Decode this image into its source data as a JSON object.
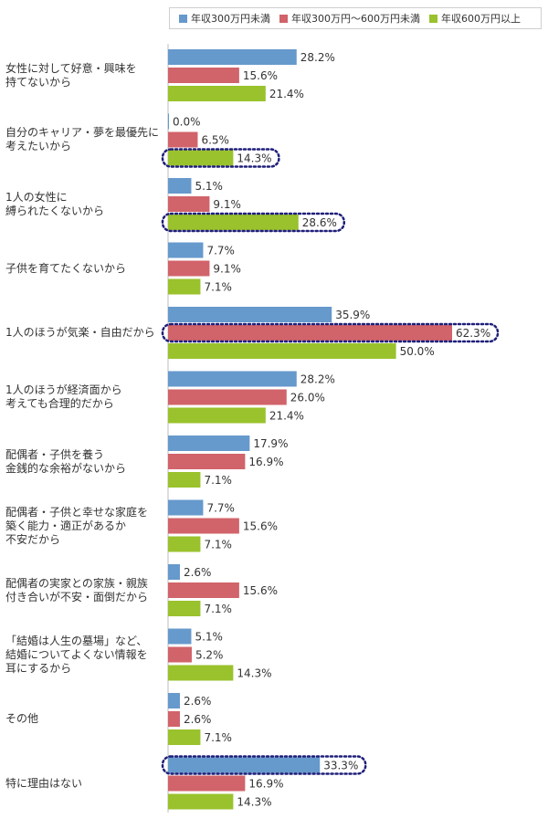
{
  "colors": {
    "s0": "#6699cc",
    "s1": "#d1636a",
    "s2": "#99c22c",
    "highlight": "#1f1f7a"
  },
  "chart_data": {
    "type": "bar",
    "orientation": "horizontal",
    "title": "",
    "xlabel": "",
    "ylabel": "",
    "unit": "%",
    "xlim": [
      0,
      100
    ],
    "legend_position": "top-right",
    "grid": false,
    "series": [
      {
        "name": "年収300万円未満",
        "values": [
          28.2,
          0.0,
          5.1,
          7.7,
          35.9,
          28.2,
          17.9,
          7.7,
          2.6,
          5.1,
          2.6,
          33.3
        ]
      },
      {
        "name": "年収300万円～600万円未満",
        "values": [
          15.6,
          6.5,
          9.1,
          9.1,
          62.3,
          26.0,
          16.9,
          15.6,
          15.6,
          5.2,
          2.6,
          16.9
        ]
      },
      {
        "name": "年収600万円以上",
        "values": [
          21.4,
          14.3,
          28.6,
          7.1,
          50.0,
          21.4,
          7.1,
          7.1,
          7.1,
          14.3,
          7.1,
          14.3
        ]
      }
    ],
    "value_labels": [
      [
        "28.2%",
        "0.0%",
        "5.1%",
        "7.7%",
        "35.9%",
        "28.2%",
        "17.9%",
        "7.7%",
        "2.6%",
        "5.1%",
        "2.6%",
        "33.3%"
      ],
      [
        "15.6%",
        "6.5%",
        "9.1%",
        "9.1%",
        "62.3%",
        "26.0%",
        "16.9%",
        "15.6%",
        "15.6%",
        "5.2%",
        "2.6%",
        "16.9%"
      ],
      [
        "21.4%",
        "14.3%",
        "28.6%",
        "7.1%",
        "50.0%",
        "21.4%",
        "7.1%",
        "7.1%",
        "7.1%",
        "14.3%",
        "7.1%",
        "14.3%"
      ]
    ],
    "categories": [
      "女性に対して好意・興味を\n持てないから",
      "自分のキャリア・夢を最優先に\n考えたいから",
      "1人の女性に\n縛られたくないから",
      "子供を育てたくないから",
      "1人のほうが気楽・自由だから",
      "1人のほうが経済面から\n考えても合理的だから",
      "配偶者・子供を養う\n金銭的な余裕がないから",
      "配偶者・子供と幸せな家庭を\n築く能力・適正があるか\n不安だから",
      "配偶者の実家との家族・親族\n付き合いが不安・面倒だから",
      "「結婚は人生の墓場」など、\n結婚についてよくない情報を\n耳にするから",
      "その他",
      "特に理由はない"
    ],
    "highlights": [
      {
        "category": 1,
        "series": 2
      },
      {
        "category": 2,
        "series": 2
      },
      {
        "category": 4,
        "series": 1
      },
      {
        "category": 11,
        "series": 0
      }
    ]
  }
}
